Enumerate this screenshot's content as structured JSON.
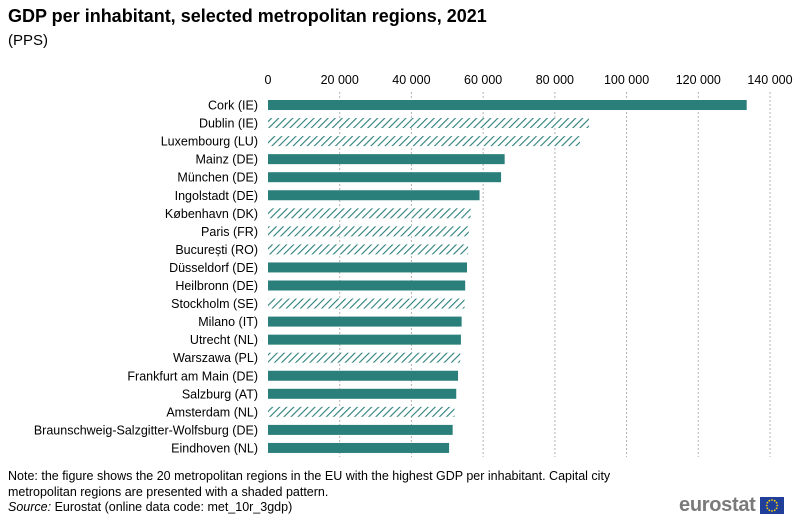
{
  "header": {
    "title": "GDP per inhabitant, selected metropolitan regions, 2021",
    "subtitle": "(PPS)"
  },
  "chart_data": {
    "type": "bar",
    "orientation": "horizontal",
    "title": "GDP per inhabitant, selected metropolitan regions, 2021",
    "unit": "PPS",
    "xlim": [
      0,
      140000
    ],
    "tick_values": [
      0,
      20000,
      40000,
      60000,
      80000,
      100000,
      120000,
      140000
    ],
    "tick_labels": [
      "0",
      "20 000",
      "40 000",
      "60 000",
      "80 000",
      "100 000",
      "120 000",
      "140 000"
    ],
    "gridlines": "vertical dotted",
    "categories": [
      "Cork (IE)",
      "Dublin (IE)",
      "Luxembourg (LU)",
      "Mainz (DE)",
      "München (DE)",
      "Ingolstadt (DE)",
      "København (DK)",
      "Paris (FR)",
      "București (RO)",
      "Düsseldorf (DE)",
      "Heilbronn (DE)",
      "Stockholm (SE)",
      "Milano (IT)",
      "Utrecht (NL)",
      "Warszawa (PL)",
      "Frankfurt am Main (DE)",
      "Salzburg (AT)",
      "Amsterdam (NL)",
      "Braunschweig-Salzgitter-Wolfsburg (DE)",
      "Eindhoven (NL)"
    ],
    "values": [
      133500,
      89500,
      87000,
      66000,
      65000,
      59000,
      56500,
      56000,
      55800,
      55500,
      55000,
      54800,
      54000,
      53800,
      53600,
      53000,
      52500,
      52000,
      51500,
      50500
    ],
    "capital_city": [
      false,
      true,
      true,
      false,
      false,
      false,
      true,
      true,
      true,
      false,
      false,
      true,
      false,
      false,
      true,
      false,
      false,
      true,
      false,
      false
    ],
    "colors": {
      "bar": "#2a7f7a",
      "grid": "#b3b3b3"
    }
  },
  "footer": {
    "note": "Note: the figure shows the 20 metropolitan regions in the EU with the highest GDP per inhabitant. Capital city metropolitan regions are presented with a shaded pattern.",
    "source_label": "Source:",
    "source_text": "Eurostat (online data code: met_10r_3gdp)",
    "logo_text": "eurostat"
  }
}
